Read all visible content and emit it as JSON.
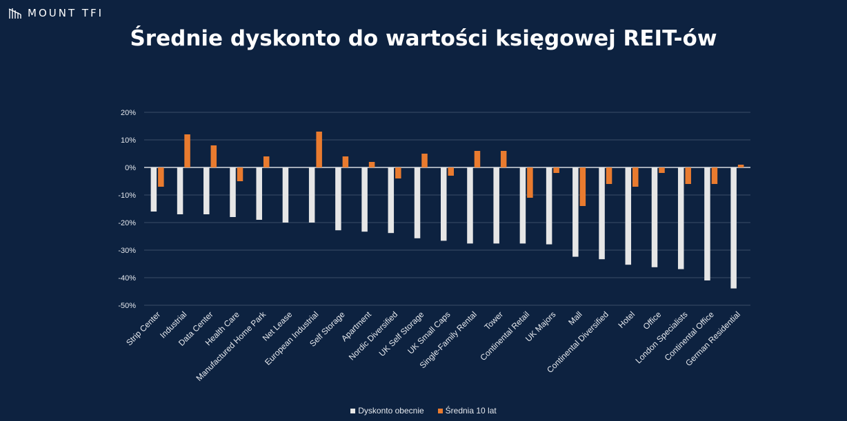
{
  "brand": {
    "name": "MOUNT TFI",
    "icon": "mount-logo-icon"
  },
  "colors": {
    "background": "#0d2240",
    "current": "#e6e6e6",
    "average": "#e97b2f",
    "grid": "#3b4d69"
  },
  "chart_data": {
    "type": "bar",
    "title": "Średnie dyskonto do wartości księgowej REIT-ów",
    "xlabel": "",
    "ylabel": "",
    "ylim": [
      -50,
      20
    ],
    "yticks": [
      20,
      10,
      0,
      -10,
      -20,
      -30,
      -40,
      -50
    ],
    "ytick_labels": [
      "20%",
      "10%",
      "0%",
      "-10%",
      "-20%",
      "-30%",
      "-40%",
      "-50%"
    ],
    "grid": true,
    "legend_position": "bottom",
    "categories": [
      "Strip Center",
      "Industrial",
      "Data Center",
      "Health Care",
      "Manufactured Home Park",
      "Net Lease",
      "European Industrial",
      "Self Storage",
      "Apartment",
      "Nordic Diversified",
      "UK Self Storage",
      "UK Small Caps",
      "Single-Family Rental",
      "Tower",
      "Continental Retail",
      "UK Majors",
      "Mall",
      "Continental Diversified",
      "Hotel",
      "Office",
      "London Specialists",
      "Continental Office",
      "German Residential"
    ],
    "series": [
      {
        "name": "Dyskonto obecnie",
        "color": "#e6e6e6",
        "values": [
          -16,
          -17,
          -17,
          -18,
          -19,
          -20,
          -20,
          -22.8,
          -23.3,
          -23.8,
          -25.7,
          -26.6,
          -27.6,
          -27.6,
          -27.6,
          -27.9,
          -32.4,
          -33.3,
          -35.3,
          -36.2,
          -36.9,
          -41,
          -43.9
        ]
      },
      {
        "name": "Średnia 10 lat",
        "color": "#e97b2f",
        "values": [
          -7,
          12,
          8,
          -5,
          4,
          0,
          13,
          4,
          2,
          -4,
          5,
          -3,
          6,
          6,
          -11,
          -2,
          -14,
          -6,
          -7,
          -2,
          -6,
          -6,
          1
        ]
      }
    ]
  }
}
